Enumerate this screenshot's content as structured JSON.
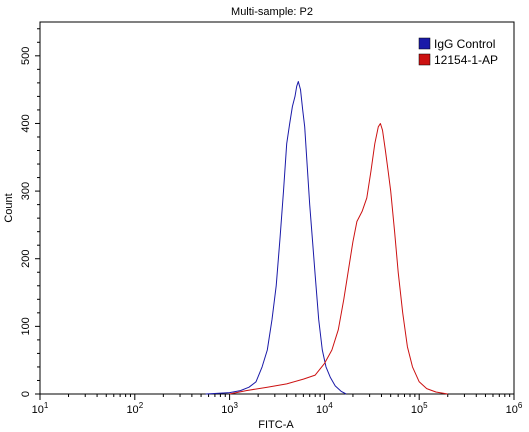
{
  "chart_data": {
    "type": "line",
    "title": "Multi-sample: P2",
    "xlabel": "FITC-A",
    "ylabel": "Count",
    "x_scale": "log",
    "xlim": [
      10,
      1000000
    ],
    "ylim": [
      0,
      550
    ],
    "x_ticks": [
      {
        "value": 10,
        "base": "10",
        "exp": "1"
      },
      {
        "value": 100,
        "base": "10",
        "exp": "2"
      },
      {
        "value": 1000,
        "base": "10",
        "exp": "3"
      },
      {
        "value": 10000,
        "base": "10",
        "exp": "4"
      },
      {
        "value": 100000,
        "base": "10",
        "exp": "5"
      },
      {
        "value": 1000000,
        "base": "10",
        "exp": "6"
      }
    ],
    "y_ticks": [
      0,
      100,
      200,
      300,
      400,
      500
    ],
    "grid": false,
    "legend_position": "top-right",
    "series": [
      {
        "name": "IgG Control",
        "color": "#1a1aa8",
        "points": [
          [
            560,
            0
          ],
          [
            1000,
            2
          ],
          [
            1300,
            5
          ],
          [
            1600,
            10
          ],
          [
            1900,
            18
          ],
          [
            2200,
            40
          ],
          [
            2500,
            65
          ],
          [
            2800,
            110
          ],
          [
            3100,
            160
          ],
          [
            3400,
            230
          ],
          [
            3700,
            300
          ],
          [
            4000,
            370
          ],
          [
            4300,
            400
          ],
          [
            4600,
            425
          ],
          [
            4900,
            440
          ],
          [
            5100,
            455
          ],
          [
            5300,
            462
          ],
          [
            5600,
            450
          ],
          [
            5900,
            420
          ],
          [
            6200,
            395
          ],
          [
            6600,
            335
          ],
          [
            7000,
            280
          ],
          [
            7500,
            225
          ],
          [
            8000,
            175
          ],
          [
            8700,
            110
          ],
          [
            9500,
            65
          ],
          [
            10400,
            40
          ],
          [
            11500,
            25
          ],
          [
            13000,
            12
          ],
          [
            15000,
            4
          ],
          [
            17000,
            0
          ]
        ]
      },
      {
        "name": "12154-1-AP",
        "color": "#cc1111",
        "points": [
          [
            1000,
            0
          ],
          [
            1500,
            5
          ],
          [
            2500,
            10
          ],
          [
            4000,
            15
          ],
          [
            6000,
            22
          ],
          [
            8000,
            28
          ],
          [
            10000,
            45
          ],
          [
            12000,
            65
          ],
          [
            14000,
            95
          ],
          [
            16000,
            140
          ],
          [
            18000,
            185
          ],
          [
            20000,
            225
          ],
          [
            22000,
            255
          ],
          [
            25000,
            270
          ],
          [
            28000,
            290
          ],
          [
            31000,
            330
          ],
          [
            34000,
            370
          ],
          [
            37000,
            395
          ],
          [
            39000,
            400
          ],
          [
            41000,
            390
          ],
          [
            44000,
            360
          ],
          [
            47000,
            330
          ],
          [
            50000,
            300
          ],
          [
            55000,
            240
          ],
          [
            60000,
            180
          ],
          [
            67000,
            120
          ],
          [
            75000,
            70
          ],
          [
            85000,
            40
          ],
          [
            100000,
            18
          ],
          [
            120000,
            8
          ],
          [
            150000,
            3
          ],
          [
            200000,
            0
          ]
        ]
      }
    ]
  }
}
